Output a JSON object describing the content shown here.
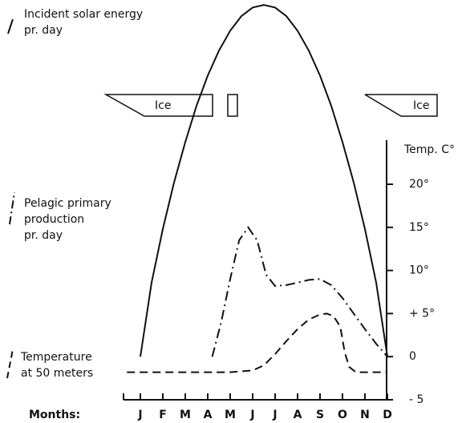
{
  "chart_data": {
    "type": "line",
    "x_label": "Months:",
    "y_label": "Temp. C°",
    "annotations": [
      "Ice",
      "Ice"
    ],
    "xlim": [
      -0.75,
      11
    ],
    "xticks": [
      {
        "value": 0,
        "label": "J"
      },
      {
        "value": 1,
        "label": "F"
      },
      {
        "value": 2,
        "label": "M"
      },
      {
        "value": 3,
        "label": "A"
      },
      {
        "value": 4,
        "label": "M"
      },
      {
        "value": 5,
        "label": "J"
      },
      {
        "value": 6,
        "label": "J"
      },
      {
        "value": 7,
        "label": "A"
      },
      {
        "value": 8,
        "label": "S"
      },
      {
        "value": 9,
        "label": "O"
      },
      {
        "value": 10,
        "label": "N"
      },
      {
        "value": 11,
        "label": "D"
      }
    ],
    "ylim": [
      -5,
      41
    ],
    "yticks": [
      {
        "value": 20,
        "label": "20°"
      },
      {
        "value": 15,
        "label": "15°"
      },
      {
        "value": 10,
        "label": "10°"
      },
      {
        "value": 5,
        "label": "+ 5°"
      },
      0,
      {
        "value": -5,
        "label": "- 5"
      }
    ],
    "series": [
      {
        "name": [
          "Incident solar energy",
          "pr. day"
        ],
        "color": "#111",
        "style": "solid",
        "x": [
          0,
          0.5,
          1,
          1.5,
          2,
          2.5,
          3,
          3.5,
          4,
          4.5,
          5,
          5.5,
          6,
          6.5,
          7,
          7.5,
          8,
          8.5,
          9,
          9.5,
          10,
          10.5,
          11
        ],
        "values": [
          0,
          8.6,
          14.8,
          20.2,
          24.9,
          29.1,
          32.6,
          35.5,
          37.8,
          39.5,
          40.5,
          40.8,
          40.5,
          39.5,
          37.8,
          35.5,
          32.6,
          29.1,
          24.9,
          20.2,
          14.8,
          8.6,
          0
        ]
      },
      {
        "name": [
          "Pelagic primary",
          "production",
          "pr. day"
        ],
        "color": "#111",
        "style": "dashdot",
        "x": [
          3.2,
          3.6,
          4,
          4.4,
          4.8,
          5.2,
          5.6,
          6,
          6.5,
          7,
          7.5,
          8,
          8.5,
          9,
          9.5,
          10,
          10.5,
          11
        ],
        "values": [
          0,
          4,
          9,
          13.5,
          15,
          13.5,
          9.5,
          8.2,
          8.3,
          8.6,
          8.9,
          9,
          8.3,
          6.8,
          5,
          3.2,
          1.5,
          0
        ]
      },
      {
        "name": [
          "Temperature",
          "at 50 meters"
        ],
        "color": "#111",
        "style": "dashed",
        "x": [
          -0.6,
          4,
          5,
          5.5,
          6,
          6.5,
          7,
          7.5,
          8,
          8.3,
          8.6,
          8.9,
          9.1,
          9.3,
          9.6,
          11
        ],
        "values": [
          -1.8,
          -1.8,
          -1.6,
          -1,
          0.3,
          1.8,
          3.2,
          4.3,
          4.9,
          5,
          4.7,
          3.5,
          0.5,
          -1.2,
          -1.8,
          -1.8
        ]
      }
    ]
  }
}
